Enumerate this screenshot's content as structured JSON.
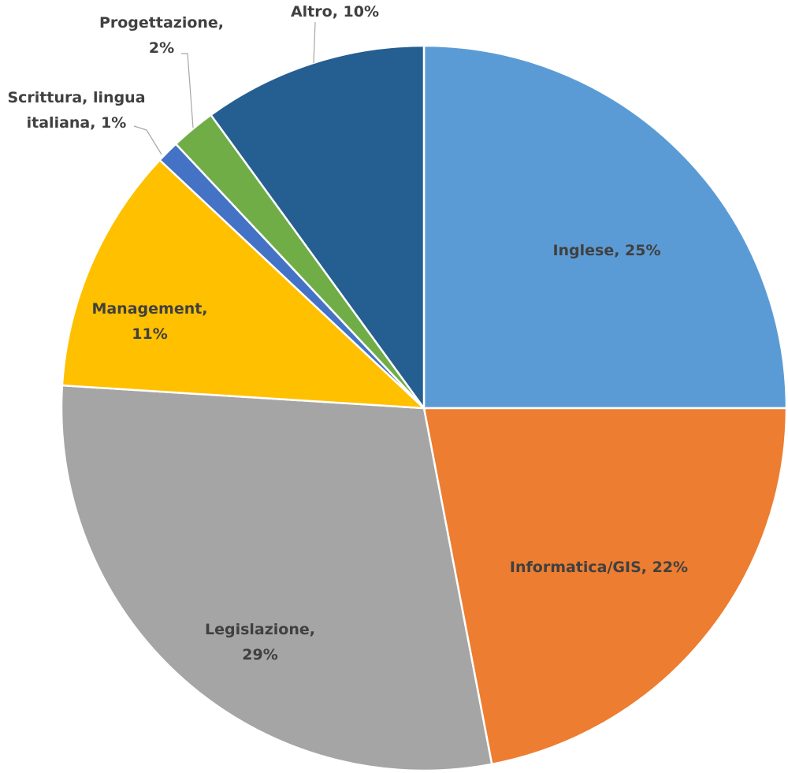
{
  "chart_data": {
    "type": "pie",
    "categories": [
      "Inglese",
      "Informatica/GIS",
      "Legislazione",
      "Management",
      "Scrittura, lingua italiana",
      "Progettazione",
      "Altro"
    ],
    "values": [
      25,
      22,
      29,
      11,
      1,
      2,
      10
    ],
    "value_labels": [
      "Inglese, 25%",
      "Informatica/GIS, 22%",
      "Legislazione,\n29%",
      "Management,\n11%",
      "Scrittura, lingua\nitaliana, 1%",
      "Progettazione,\n2%",
      "Altro, 10%"
    ],
    "colors": [
      "#5b9bd5",
      "#ed7d31",
      "#a5a5a5",
      "#ffc000",
      "#4472c4",
      "#70ad47",
      "#255e91"
    ]
  }
}
